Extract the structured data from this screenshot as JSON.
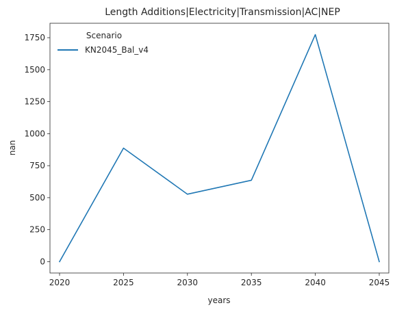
{
  "chart_data": {
    "type": "line",
    "title": "Length Additions|Electricity|Transmission|AC|NEP",
    "xlabel": "years",
    "ylabel": "nan",
    "x": [
      2020,
      2025,
      2030,
      2035,
      2040,
      2045
    ],
    "xticks": [
      2020,
      2025,
      2030,
      2035,
      2040,
      2045
    ],
    "yticks": [
      0,
      250,
      500,
      750,
      1000,
      1250,
      1500,
      1750
    ],
    "xlim": [
      2019.25,
      2045.75
    ],
    "ylim": [
      -88.7,
      1862.7
    ],
    "grid": false,
    "legend": {
      "title": "Scenario",
      "placement": "top-left"
    },
    "series": [
      {
        "name": "KN2045_Bal_v4",
        "color": "#1f77b4",
        "values": [
          0,
          887,
          527,
          636,
          1774,
          0
        ]
      }
    ]
  }
}
